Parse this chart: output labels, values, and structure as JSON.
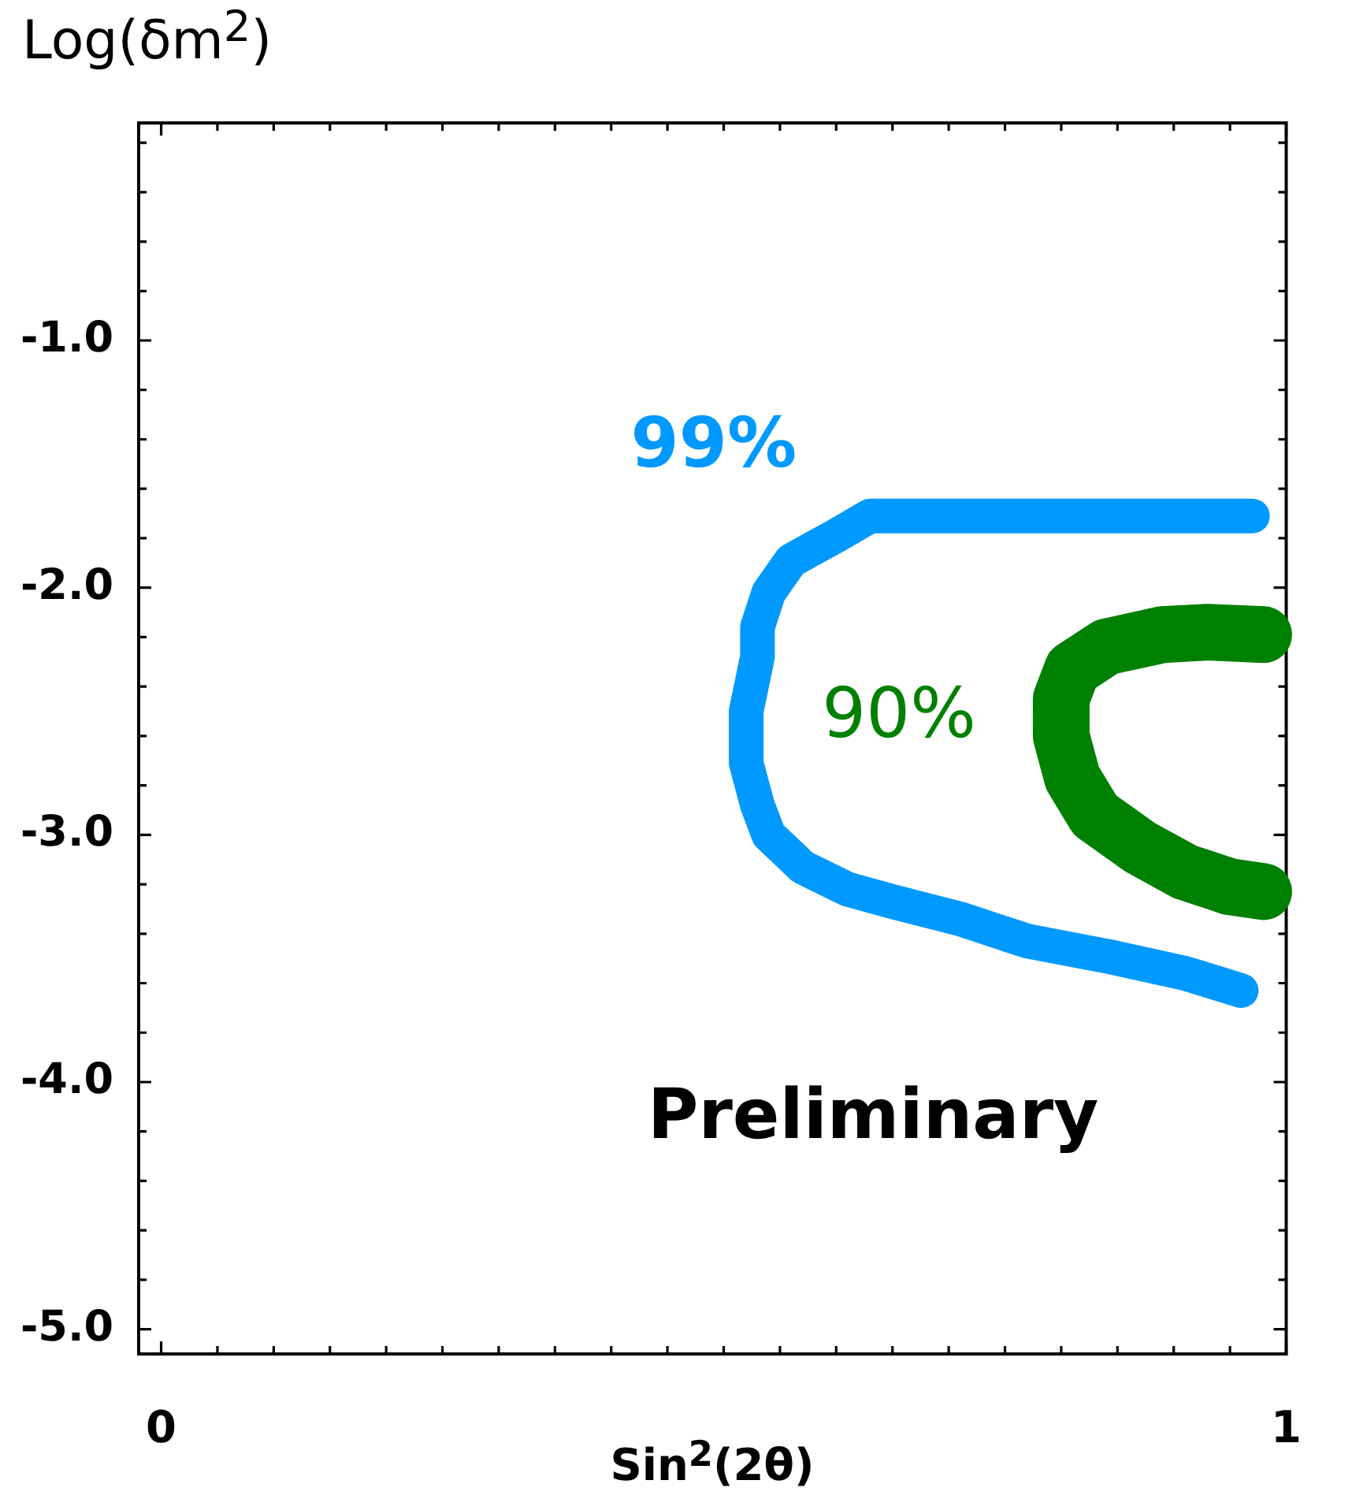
{
  "chart_data": {
    "type": "line",
    "xlabel": "Sin$^{2}$(2θ)",
    "ylabel": "Log(δm$^{2}$)",
    "annotations": [
      "Preliminary"
    ],
    "xlim": [
      -0.02,
      1.0
    ],
    "ylim": [
      -5.1,
      -0.12
    ],
    "xticks": [
      {
        "value": 0,
        "label": "0"
      },
      {
        "value": 0.05,
        "label": null
      },
      {
        "value": 0.1,
        "label": null
      },
      {
        "value": 0.15,
        "label": null
      },
      {
        "value": 0.2,
        "label": null
      },
      {
        "value": 0.25,
        "label": null
      },
      {
        "value": 0.3,
        "label": null
      },
      {
        "value": 0.35,
        "label": null
      },
      {
        "value": 0.4,
        "label": null
      },
      {
        "value": 0.45,
        "label": null
      },
      {
        "value": 0.5,
        "label": null
      },
      {
        "value": 0.55,
        "label": null
      },
      {
        "value": 0.6,
        "label": null
      },
      {
        "value": 0.65,
        "label": null
      },
      {
        "value": 0.7,
        "label": null
      },
      {
        "value": 0.75,
        "label": null
      },
      {
        "value": 0.8,
        "label": null
      },
      {
        "value": 0.85,
        "label": null
      },
      {
        "value": 0.9,
        "label": null
      },
      {
        "value": 0.95,
        "label": null
      },
      {
        "value": 1,
        "label": "1"
      }
    ],
    "yticks": [
      {
        "value": -0.2,
        "label": null
      },
      {
        "value": -0.4,
        "label": null
      },
      {
        "value": -0.6,
        "label": null
      },
      {
        "value": -0.8,
        "label": null
      },
      {
        "value": -1,
        "label": "-1.0"
      },
      {
        "value": -1.2,
        "label": null
      },
      {
        "value": -1.4,
        "label": null
      },
      {
        "value": -1.6,
        "label": null
      },
      {
        "value": -1.8,
        "label": null
      },
      {
        "value": -2,
        "label": "-2.0"
      },
      {
        "value": -2.2,
        "label": null
      },
      {
        "value": -2.4,
        "label": null
      },
      {
        "value": -2.6,
        "label": null
      },
      {
        "value": -2.8,
        "label": null
      },
      {
        "value": -3,
        "label": "-3.0"
      },
      {
        "value": -3.2,
        "label": null
      },
      {
        "value": -3.4,
        "label": null
      },
      {
        "value": -3.6,
        "label": null
      },
      {
        "value": -3.8,
        "label": null
      },
      {
        "value": -4,
        "label": "-4.0"
      },
      {
        "value": -4.2,
        "label": null
      },
      {
        "value": -4.4,
        "label": null
      },
      {
        "value": -4.6,
        "label": null
      },
      {
        "value": -4.8,
        "label": null
      },
      {
        "value": -5,
        "label": "-5.0"
      }
    ],
    "series": [
      {
        "name": "99%",
        "color": "#0099ff",
        "x": [
          0.97,
          0.68,
          0.63,
          0.6,
          0.56,
          0.54,
          0.53,
          0.53,
          0.52,
          0.52,
          0.53,
          0.54,
          0.57,
          0.61,
          0.65,
          0.71,
          0.77,
          0.84,
          0.91,
          0.96
        ],
        "values": [
          -1.71,
          -1.71,
          -1.71,
          -1.79,
          -1.89,
          -2.02,
          -2.16,
          -2.28,
          -2.5,
          -2.71,
          -2.88,
          -3.0,
          -3.13,
          -3.22,
          -3.27,
          -3.34,
          -3.43,
          -3.49,
          -3.56,
          -3.63
        ]
      },
      {
        "name": "90%",
        "color": "#008000",
        "x": [
          0.98,
          0.93,
          0.89,
          0.84,
          0.81,
          0.8,
          0.8,
          0.81,
          0.83,
          0.87,
          0.91,
          0.95,
          0.98
        ],
        "values": [
          -2.19,
          -2.18,
          -2.19,
          -2.24,
          -2.33,
          -2.45,
          -2.6,
          -2.77,
          -2.92,
          -3.05,
          -3.15,
          -3.21,
          -3.23
        ]
      }
    ]
  }
}
